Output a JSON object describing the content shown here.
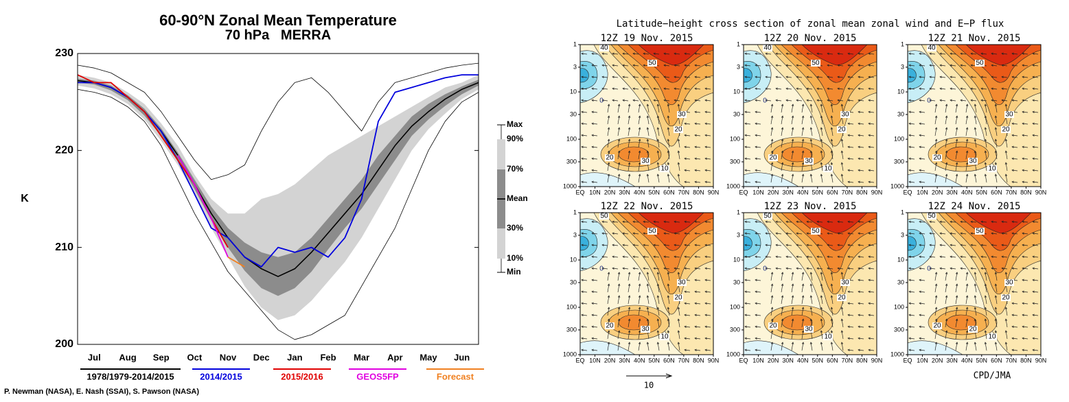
{
  "chart_data": {
    "type": "line",
    "title": "60-90°N Zonal Mean Temperature",
    "subtitle": "70 hPa   MERRA",
    "y_label": "K",
    "x": [
      0,
      0.5,
      1,
      1.5,
      2,
      2.5,
      3,
      3.5,
      4,
      4.5,
      5,
      5.5,
      6,
      6.5,
      7,
      7.5,
      8,
      8.5,
      9,
      9.5,
      10,
      10.5,
      11,
      11.5,
      12
    ],
    "xlim": [
      0,
      12
    ],
    "xticks": [
      {
        "value": 0.5,
        "label": "Jul"
      },
      {
        "value": 1.5,
        "label": "Aug"
      },
      {
        "value": 2.5,
        "label": "Sep"
      },
      {
        "value": 3.5,
        "label": "Oct"
      },
      {
        "value": 4.5,
        "label": "Nov"
      },
      {
        "value": 5.5,
        "label": "Dec"
      },
      {
        "value": 6.5,
        "label": "Jan"
      },
      {
        "value": 7.5,
        "label": "Feb"
      },
      {
        "value": 8.5,
        "label": "Mar"
      },
      {
        "value": 9.5,
        "label": "Apr"
      },
      {
        "value": 10.5,
        "label": "May"
      },
      {
        "value": 11.5,
        "label": "Jun"
      }
    ],
    "ylim": [
      200,
      230
    ],
    "yticks": [
      200,
      210,
      220,
      230
    ],
    "climatology_label": "1978/1979-2014/2015",
    "credit": "P. Newman (NASA), E. Nash (SSAI), S. Pawson (NASA)",
    "series": [
      {
        "name": "Max",
        "color": "#000000",
        "values": [
          228.8,
          228.5,
          228,
          227,
          226,
          224,
          221.5,
          219,
          217,
          217.5,
          218.5,
          222,
          225,
          227,
          227.5,
          226,
          224,
          222,
          225,
          227,
          227.5,
          228,
          228.5,
          228.8,
          229
        ]
      },
      {
        "name": "90%",
        "color": "#d3d3d3",
        "values": [
          227.8,
          227.5,
          227,
          226,
          224.8,
          222.8,
          220.5,
          217.5,
          215,
          213.5,
          213.5,
          215,
          215.5,
          216.5,
          218,
          219.5,
          220.5,
          221.5,
          222.5,
          223.5,
          224.5,
          225.5,
          226.5,
          227,
          227.8
        ]
      },
      {
        "name": "70%",
        "color": "#8c8c8c",
        "values": [
          227.4,
          227.2,
          226.7,
          225.7,
          224.3,
          222.3,
          219.8,
          217,
          214.2,
          212,
          210.5,
          209.5,
          209,
          209.5,
          211,
          213,
          215,
          217,
          219.5,
          221.5,
          223.5,
          224.8,
          225.8,
          226.6,
          227.3
        ]
      },
      {
        "name": "Mean",
        "color": "#000000",
        "values": [
          227.2,
          227,
          226.5,
          225.5,
          224,
          222,
          219.5,
          216.5,
          213.5,
          211,
          209,
          207.8,
          207,
          207.8,
          209.5,
          211.5,
          213.5,
          215.5,
          218,
          220.5,
          222.5,
          224,
          225.3,
          226.3,
          227
        ]
      },
      {
        "name": "30%",
        "color": "#8c8c8c",
        "values": [
          227,
          226.8,
          226.2,
          225.2,
          223.6,
          221.5,
          219,
          216,
          212.8,
          210,
          207.6,
          205.8,
          205,
          205.8,
          207.5,
          209.8,
          212,
          214,
          216.5,
          219,
          221.5,
          223.2,
          224.6,
          225.8,
          226.7
        ]
      },
      {
        "name": "10%",
        "color": "#d3d3d3",
        "values": [
          226.7,
          226.4,
          225.8,
          224.8,
          223.2,
          221,
          218.5,
          215.5,
          212,
          209,
          206,
          203.8,
          202.5,
          203,
          204.5,
          206.5,
          208.5,
          211,
          214,
          217,
          220,
          222.2,
          223.8,
          225.3,
          226.3
        ]
      },
      {
        "name": "Min",
        "color": "#000000",
        "values": [
          226.3,
          226,
          225.5,
          224.5,
          223,
          220.5,
          217,
          213.5,
          210.5,
          207.5,
          205.5,
          203.5,
          201.5,
          200.5,
          201,
          202,
          203,
          206,
          209,
          212,
          216,
          220,
          223,
          225,
          226
        ]
      },
      {
        "name": "2014/2015",
        "color": "#0000dd",
        "values": [
          227,
          227,
          226.5,
          225.5,
          224,
          222,
          219,
          215.5,
          212,
          211,
          209,
          208,
          210,
          209.5,
          210,
          209,
          211,
          215,
          223,
          226,
          226.5,
          227,
          227.5,
          227.8,
          227.8
        ]
      },
      {
        "name": "2015/2016",
        "color": "#e00000",
        "values": [
          227.8,
          227,
          227,
          225.5,
          224,
          221.5,
          219,
          216.5,
          213,
          210,
          null,
          null,
          null,
          null,
          null,
          null,
          null,
          null,
          null,
          null,
          null,
          null,
          null,
          null,
          null
        ]
      },
      {
        "name": "GEOS5FP",
        "color": "#e000e0",
        "values": [
          null,
          null,
          null,
          null,
          null,
          null,
          219.5,
          216.5,
          213,
          209,
          null,
          null,
          null,
          null,
          null,
          null,
          null,
          null,
          null,
          null,
          null,
          null,
          null,
          null,
          null
        ]
      },
      {
        "name": "Forecast",
        "color": "#f08020",
        "values": [
          null,
          null,
          null,
          null,
          null,
          null,
          null,
          null,
          null,
          209,
          208,
          null,
          null,
          null,
          null,
          null,
          null,
          null,
          null,
          null,
          null,
          null,
          null,
          null,
          null
        ]
      }
    ]
  },
  "cross_sections": {
    "title": "Latitude−height cross section of zonal mean zonal wind and E−P flux",
    "ylim": [
      1,
      1000
    ],
    "log_y": true,
    "yticks": [
      1,
      3,
      10,
      30,
      100,
      300,
      1000
    ],
    "xticks": [
      "EQ",
      "10N",
      "20N",
      "30N",
      "40N",
      "50N",
      "60N",
      "70N",
      "80N",
      "90N"
    ],
    "scale_label": "10",
    "credit": "CPD/JMA",
    "panels": [
      {
        "title": "12Z 19 Nov. 2015",
        "contour_labels": [
          "40",
          "50",
          "30",
          "20",
          "20",
          "30",
          "10",
          "0"
        ]
      },
      {
        "title": "12Z 20 Nov. 2015",
        "contour_labels": [
          "40",
          "50",
          "30",
          "20",
          "20",
          "30",
          "10",
          "0"
        ]
      },
      {
        "title": "12Z 21 Nov. 2015",
        "contour_labels": [
          "40",
          "50",
          "30",
          "20",
          "20",
          "30",
          "10",
          "0"
        ]
      },
      {
        "title": "12Z 22 Nov. 2015",
        "contour_labels": [
          "50",
          "50",
          "30",
          "20",
          "20",
          "30",
          "10",
          "0"
        ]
      },
      {
        "title": "12Z 23 Nov. 2015",
        "contour_labels": [
          "50",
          "50",
          "30",
          "20",
          "20",
          "30",
          "10",
          "0"
        ]
      },
      {
        "title": "12Z 24 Nov. 2015",
        "contour_labels": [
          "50",
          "50",
          "30",
          "20",
          "20",
          "20",
          "10",
          "0"
        ]
      }
    ]
  }
}
